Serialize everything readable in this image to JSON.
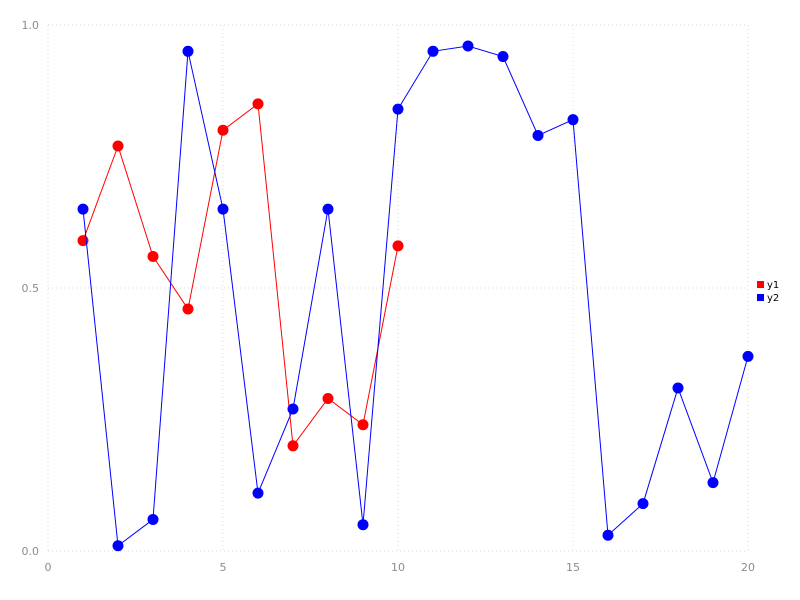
{
  "colors": {
    "background": "#ffffff",
    "grid": "#d9d9d9",
    "tick_label": "#8c8c8c",
    "legend_text": "#000000",
    "series_y1": "#ff0000",
    "series_y2": "#0000ff"
  },
  "chart_data": {
    "type": "line",
    "title": "",
    "xlabel": "",
    "ylabel": "",
    "xlim": [
      0,
      20
    ],
    "ylim": [
      0,
      1
    ],
    "x_ticks": [
      0,
      5,
      10,
      15,
      20
    ],
    "x_tick_labels": [
      "0",
      "5",
      "10",
      "15",
      "20"
    ],
    "y_ticks": [
      0,
      0.5,
      1
    ],
    "y_tick_labels": [
      "0.0",
      "0.5",
      "1.0"
    ],
    "grid": true,
    "grid_style": "dotted",
    "legend_position": "right-outside-middle",
    "marker": "circle",
    "series": [
      {
        "name": "y1",
        "color": "#ff0000",
        "x": [
          1,
          2,
          3,
          4,
          5,
          6,
          7,
          8,
          9,
          10
        ],
        "values": [
          0.59,
          0.77,
          0.56,
          0.46,
          0.8,
          0.85,
          0.2,
          0.29,
          0.24,
          0.58
        ]
      },
      {
        "name": "y2",
        "color": "#0000ff",
        "x": [
          1,
          2,
          3,
          4,
          5,
          6,
          7,
          8,
          9,
          10,
          11,
          12,
          13,
          14,
          15,
          16,
          17,
          18,
          19,
          20
        ],
        "values": [
          0.65,
          0.01,
          0.06,
          0.95,
          0.65,
          0.11,
          0.27,
          0.65,
          0.05,
          0.84,
          0.95,
          0.96,
          0.94,
          0.79,
          0.82,
          0.03,
          0.09,
          0.31,
          0.13,
          0.37
        ]
      }
    ]
  },
  "legend": {
    "entries": [
      {
        "label": "y1",
        "color": "#ff0000"
      },
      {
        "label": "y2",
        "color": "#0000ff"
      }
    ]
  }
}
